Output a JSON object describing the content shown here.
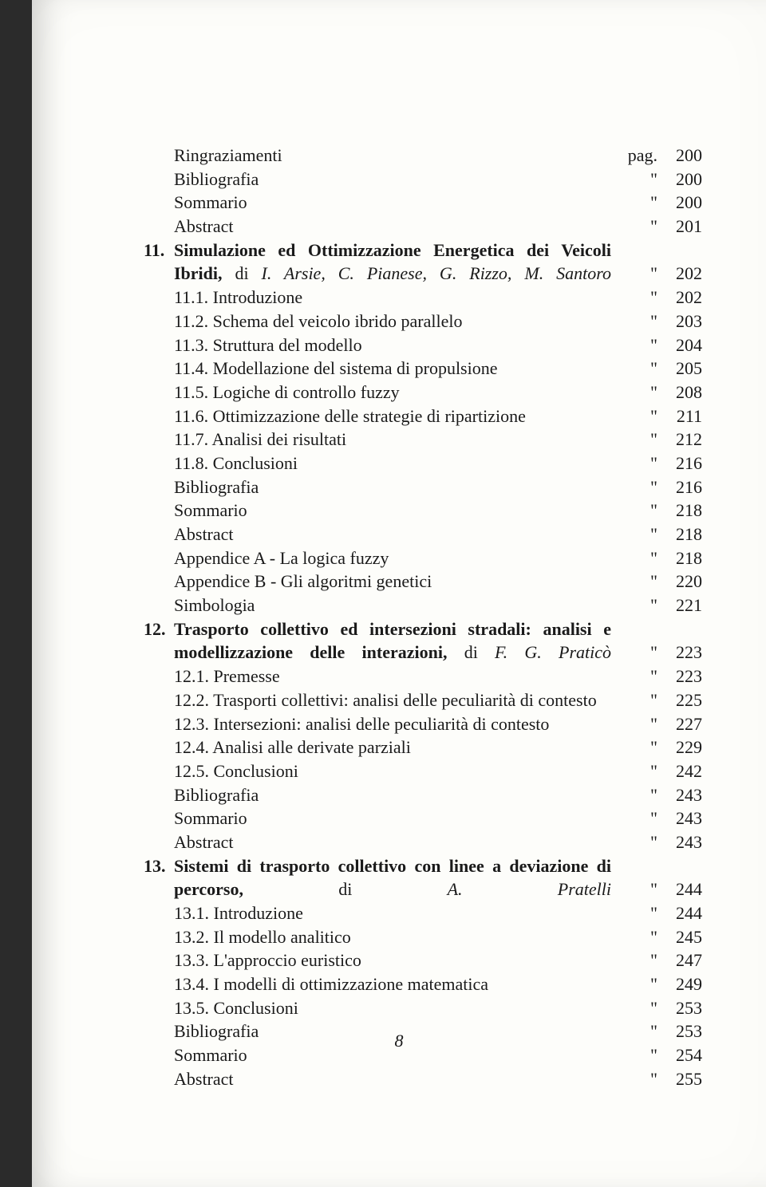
{
  "page_number": "8",
  "unit_first": "pag.",
  "unit_repeat": "\"",
  "entries": [
    {
      "num": "",
      "label": "Ringraziamenti",
      "unit": "pag.",
      "page": "200"
    },
    {
      "num": "",
      "label": "Bibliografia",
      "unit": "\"",
      "page": "200"
    },
    {
      "num": "",
      "label": "Sommario",
      "unit": "\"",
      "page": "200"
    },
    {
      "num": "",
      "label": "Abstract",
      "unit": "\"",
      "page": "201"
    },
    {
      "num": "11.",
      "bold": true,
      "parts": [
        {
          "text": "Simulazione ed Ottimizzazione Energetica dei Veicoli Ibridi, ",
          "b": true
        },
        {
          "text": "di ",
          "b": false
        },
        {
          "text": "I. Arsie, C. Pianese, G. Rizzo, M. Santoro",
          "i": true
        }
      ],
      "unit": "\"",
      "page": "202",
      "multiline": true
    },
    {
      "num": "",
      "label": "11.1. Introduzione",
      "unit": "\"",
      "page": "202"
    },
    {
      "num": "",
      "label": "11.2. Schema del veicolo ibrido parallelo",
      "unit": "\"",
      "page": "203"
    },
    {
      "num": "",
      "label": "11.3. Struttura del modello",
      "unit": "\"",
      "page": "204"
    },
    {
      "num": "",
      "label": "11.4. Modellazione del sistema di propulsione",
      "unit": "\"",
      "page": "205"
    },
    {
      "num": "",
      "label": "11.5. Logiche di controllo fuzzy",
      "unit": "\"",
      "page": "208"
    },
    {
      "num": "",
      "label": "11.6. Ottimizzazione delle strategie di ripartizione",
      "unit": "\"",
      "page": "211"
    },
    {
      "num": "",
      "label": "11.7. Analisi dei risultati",
      "unit": "\"",
      "page": "212"
    },
    {
      "num": "",
      "label": "11.8. Conclusioni",
      "unit": "\"",
      "page": "216"
    },
    {
      "num": "",
      "label": "Bibliografia",
      "unit": "\"",
      "page": "216"
    },
    {
      "num": "",
      "label": "Sommario",
      "unit": "\"",
      "page": "218"
    },
    {
      "num": "",
      "label": "Abstract",
      "unit": "\"",
      "page": "218"
    },
    {
      "num": "",
      "label": "Appendice A - La logica fuzzy",
      "unit": "\"",
      "page": "218"
    },
    {
      "num": "",
      "label": "Appendice B - Gli algoritmi genetici",
      "unit": "\"",
      "page": "220"
    },
    {
      "num": "",
      "label": "Simbologia",
      "unit": "\"",
      "page": "221"
    },
    {
      "num": "12.",
      "bold": true,
      "parts": [
        {
          "text": "Trasporto collettivo ed intersezioni stradali: analisi e modellizzazione delle interazioni, ",
          "b": true
        },
        {
          "text": "di ",
          "b": false
        },
        {
          "text": "F. G. Praticò",
          "i": true
        }
      ],
      "unit": "\"",
      "page": "223",
      "multiline": true
    },
    {
      "num": "",
      "label": "12.1. Premesse",
      "unit": "\"",
      "page": "223"
    },
    {
      "num": "",
      "label": "12.2. Trasporti collettivi: analisi delle peculiarità di contesto",
      "unit": "\"",
      "page": "225"
    },
    {
      "num": "",
      "label": "12.3. Intersezioni: analisi delle peculiarità di contesto",
      "unit": "\"",
      "page": "227"
    },
    {
      "num": "",
      "label": "12.4. Analisi alle derivate parziali",
      "unit": "\"",
      "page": "229"
    },
    {
      "num": "",
      "label": "12.5. Conclusioni",
      "unit": "\"",
      "page": "242"
    },
    {
      "num": "",
      "label": "Bibliografia",
      "unit": "\"",
      "page": "243"
    },
    {
      "num": "",
      "label": "Sommario",
      "unit": "\"",
      "page": "243"
    },
    {
      "num": "",
      "label": "Abstract",
      "unit": "\"",
      "page": "243"
    },
    {
      "num": "13.",
      "bold": true,
      "parts": [
        {
          "text": "Sistemi di trasporto collettivo con linee a deviazione di percorso, ",
          "b": true
        },
        {
          "text": "di ",
          "b": false
        },
        {
          "text": "A. Pratelli",
          "i": true
        }
      ],
      "unit": "\"",
      "page": "244",
      "multiline": true
    },
    {
      "num": "",
      "label": "13.1. Introduzione",
      "unit": "\"",
      "page": "244"
    },
    {
      "num": "",
      "label": "13.2. Il modello analitico",
      "unit": "\"",
      "page": "245"
    },
    {
      "num": "",
      "label": "13.3. L'approccio euristico",
      "unit": "\"",
      "page": "247"
    },
    {
      "num": "",
      "label": "13.4. I modelli di ottimizzazione matematica",
      "unit": "\"",
      "page": "249"
    },
    {
      "num": "",
      "label": "13.5. Conclusioni",
      "unit": "\"",
      "page": "253"
    },
    {
      "num": "",
      "label": "Bibliografia",
      "unit": "\"",
      "page": "253"
    },
    {
      "num": "",
      "label": "Sommario",
      "unit": "\"",
      "page": "254"
    },
    {
      "num": "",
      "label": "Abstract",
      "unit": "\"",
      "page": "255"
    }
  ],
  "colors": {
    "page_bg": "#fdfdfa",
    "frame_bg": "#2b2b2b",
    "text": "#1a1a1a"
  },
  "typography": {
    "font_family": "Times New Roman",
    "body_fontsize_pt": 16,
    "line_height": 1.35
  }
}
